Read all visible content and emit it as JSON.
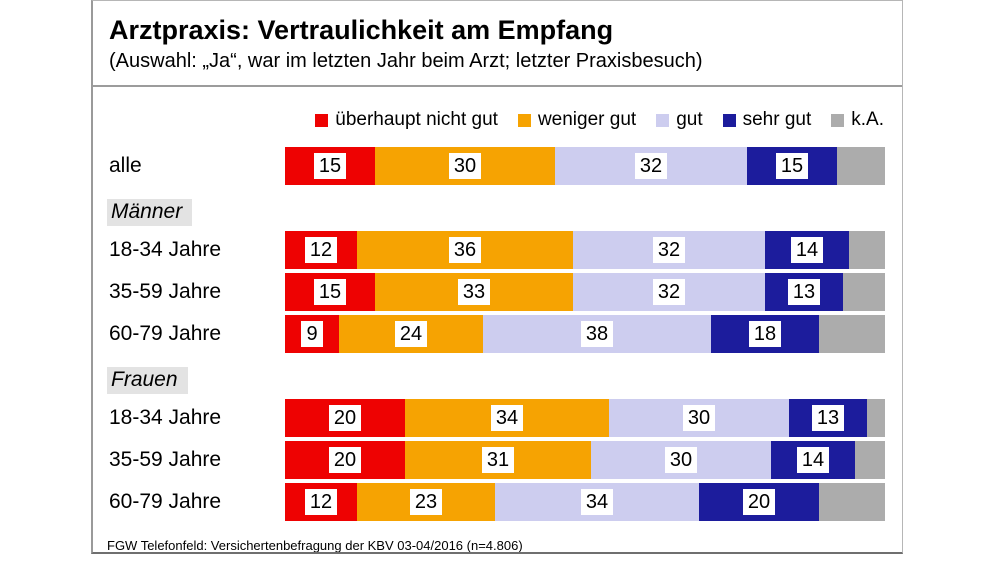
{
  "header": {
    "title": "Arztpraxis: Vertraulichkeit am Empfang",
    "subtitle": "(Auswahl: „Ja“, war im letzten Jahr beim Arzt; letzter Praxisbesuch)"
  },
  "footer": {
    "source": "FGW Telefonfeld: Versichertenbefragung der KBV 03-04/2016 (n=4.806)"
  },
  "chart_data": {
    "type": "bar",
    "orientation": "horizontal",
    "stacked": true,
    "unit": "percent",
    "xlim": [
      0,
      100
    ],
    "grid": false,
    "legend_position": "top-right",
    "title": "Arztpraxis: Vertraulichkeit am Empfang",
    "subtitle": "(Auswahl: „Ja“, war im letzten Jahr beim Arzt; letzter Praxisbesuch)",
    "source_note": "FGW Telefonfeld: Versichertenbefragung der KBV 03-04/2016 (n=4.806)",
    "series_meta": [
      {
        "name": "überhaupt nicht gut",
        "color": "#ee0202",
        "show_value": true
      },
      {
        "name": "weniger gut",
        "color": "#f6a302",
        "show_value": true
      },
      {
        "name": "gut",
        "color": "#cdcdef",
        "show_value": true
      },
      {
        "name": "sehr gut",
        "color": "#1c1c9c",
        "show_value": true
      },
      {
        "name": "k.A.",
        "color": "#acacac",
        "show_value": false
      }
    ],
    "rows": [
      {
        "type": "bar",
        "label": "alle",
        "values": [
          15,
          30,
          32,
          15,
          8
        ]
      },
      {
        "type": "section",
        "label": "Männer"
      },
      {
        "type": "bar",
        "label": "18-34 Jahre",
        "values": [
          12,
          36,
          32,
          14,
          6
        ]
      },
      {
        "type": "bar",
        "label": "35-59 Jahre",
        "values": [
          15,
          33,
          32,
          13,
          7
        ]
      },
      {
        "type": "bar",
        "label": "60-79 Jahre",
        "values": [
          9,
          24,
          38,
          18,
          11
        ]
      },
      {
        "type": "section",
        "label": "Frauen"
      },
      {
        "type": "bar",
        "label": "18-34 Jahre",
        "values": [
          20,
          34,
          30,
          13,
          3
        ]
      },
      {
        "type": "bar",
        "label": "35-59 Jahre",
        "values": [
          20,
          31,
          30,
          14,
          5
        ]
      },
      {
        "type": "bar",
        "label": "60-79 Jahre",
        "values": [
          12,
          23,
          34,
          20,
          11
        ]
      }
    ],
    "section_label_background": "#e3e3e3",
    "value_label_style": "white box, black text, centered in segment"
  }
}
